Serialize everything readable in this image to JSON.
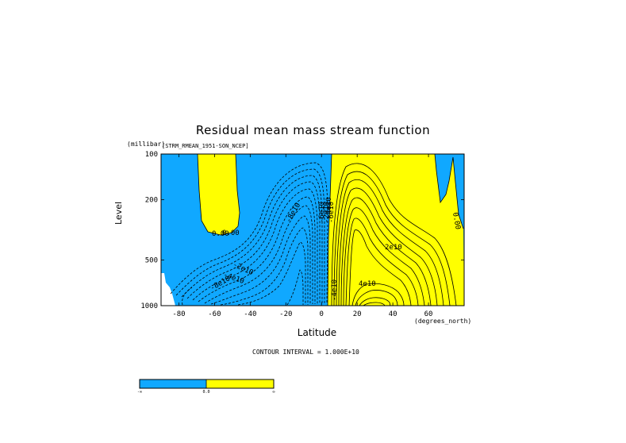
{
  "chart_data": {
    "type": "contour",
    "title": "Residual mean mass stream function",
    "dataset": "[STRM_RMEAN_1951-SON_NCEP]",
    "xlabel": "Latitude",
    "xlabel_unit": "(degrees_north)",
    "ylabel": "Level",
    "ylabel_unit": "(millibar)",
    "x_range": [
      -90,
      80
    ],
    "x_ticks": [
      -80,
      -60,
      -40,
      -20,
      0,
      20,
      40,
      60
    ],
    "x_tick_labels": [
      "-80",
      "-60",
      "-40",
      "-20",
      "0",
      "20",
      "40",
      "60"
    ],
    "y_range_mb": [
      1000,
      100
    ],
    "y_scale": "log",
    "y_ticks": [
      1000,
      500,
      200,
      100
    ],
    "y_tick_labels": [
      "1000",
      "500",
      "200",
      "100"
    ],
    "contour_interval_text": "CONTOUR INTERVAL = 1.000E+10",
    "contour_labels": [
      "0.00",
      "-8e10",
      "-6e10",
      "-2e10",
      "-6e10",
      "-2e10",
      "-4e10",
      "-8e10",
      "-4e10",
      "0.00",
      "2e10",
      "4e10",
      "4e10",
      "0.00"
    ],
    "fill_colors": {
      "negative": "#10a8ff",
      "positive": "#ffff00",
      "missing": "#ffffff"
    },
    "colorbar": {
      "labels": [
        "-∞",
        "0.0",
        "∞"
      ],
      "colors": [
        "#10a8ff",
        "#ffff00"
      ]
    },
    "cells": [
      {
        "lat": [
          -90,
          -60
        ],
        "level": [
          100,
          1000
        ],
        "sign": "negative"
      },
      {
        "lat": [
          -60,
          -40
        ],
        "level": [
          100,
          350
        ],
        "sign": "positive"
      },
      {
        "lat": [
          -40,
          10
        ],
        "level": [
          100,
          1000
        ],
        "sign": "negative"
      },
      {
        "lat": [
          10,
          60
        ],
        "level": [
          100,
          1000
        ],
        "sign": "positive"
      },
      {
        "lat": [
          60,
          80
        ],
        "level": [
          100,
          1000
        ],
        "sign": "negative"
      }
    ]
  }
}
